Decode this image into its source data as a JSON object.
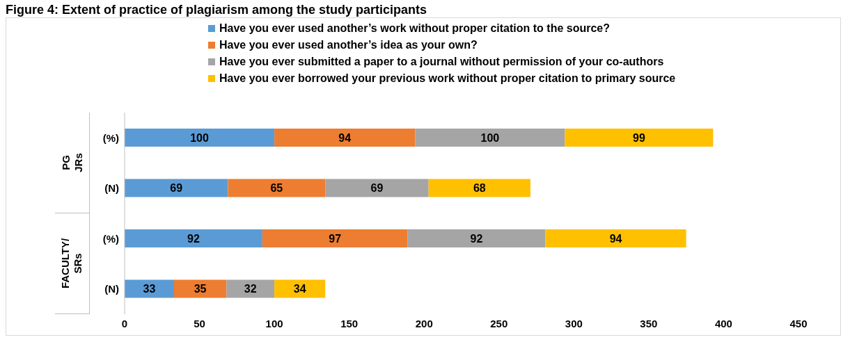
{
  "chart_data": {
    "type": "bar",
    "orientation": "horizontal",
    "stacked": true,
    "title": "Figure 4: Extent of practice of plagiarism among the study participants",
    "categories": [
      "(%)",
      "(N)",
      "(%)",
      "(N)"
    ],
    "series": [
      {
        "name": "Have you ever used another’s work without proper citation to the source?",
        "color": "#5b9bd5",
        "values": [
          100,
          69,
          92,
          33
        ]
      },
      {
        "name": "Have you ever used another’s idea as your own?",
        "color": "#ed7d31",
        "values": [
          94,
          65,
          97,
          35
        ]
      },
      {
        "name": "Have you ever submitted a paper to a journal without permission of your co-authors",
        "color": "#a5a5a5",
        "values": [
          100,
          69,
          92,
          32
        ]
      },
      {
        "name": "Have you ever borrowed your previous work without proper citation to primary source",
        "color": "#ffc000",
        "values": [
          99,
          68,
          94,
          34
        ]
      }
    ],
    "annotations": [
      "PG JRs",
      "FACULTY/ SRs"
    ],
    "xlim": [
      0,
      450
    ],
    "xticks": [
      0,
      50,
      100,
      150,
      200,
      250,
      300,
      350,
      400,
      450
    ],
    "data_labels": true,
    "legend": "top"
  }
}
